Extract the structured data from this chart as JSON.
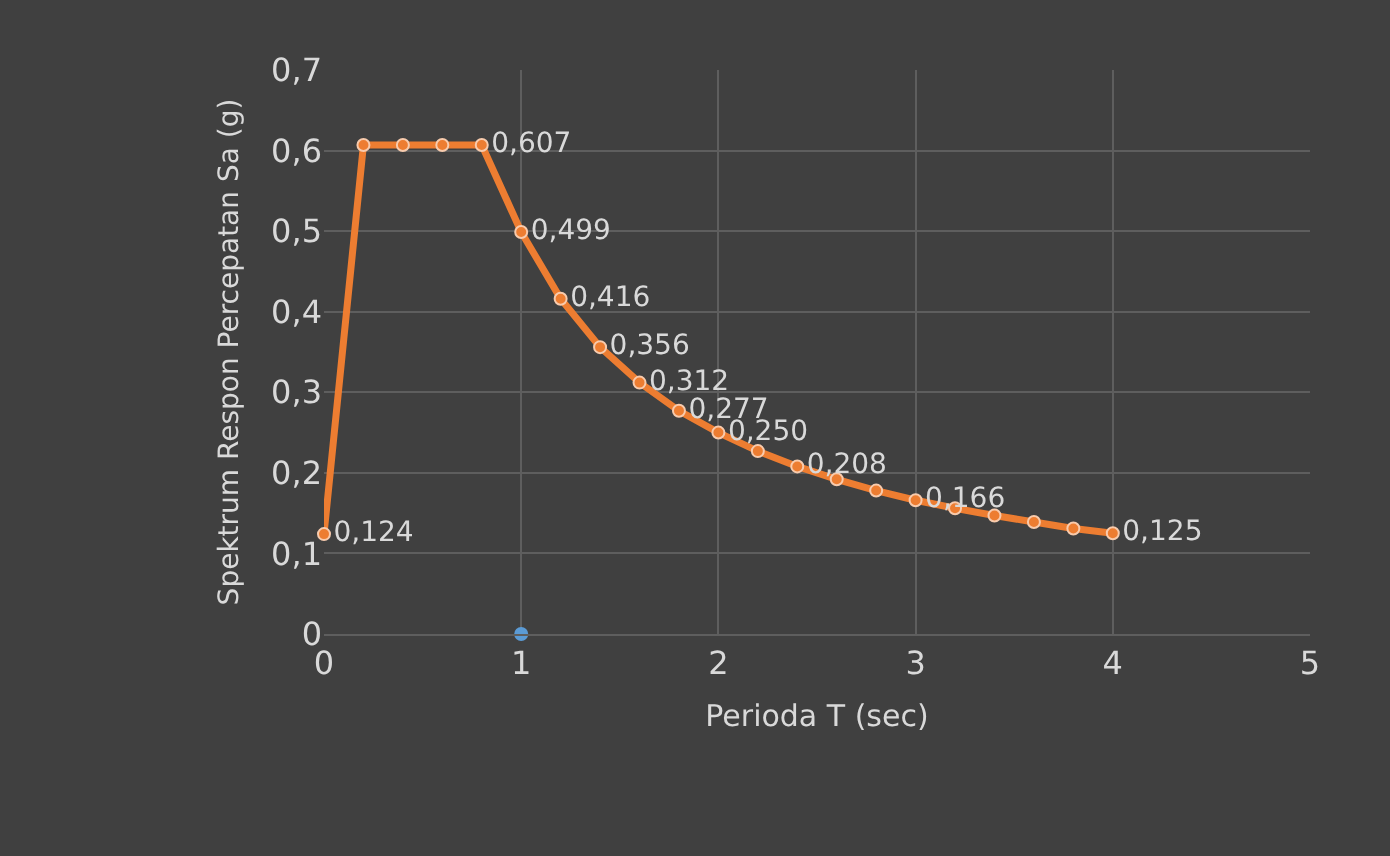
{
  "chart_data": {
    "type": "line",
    "xlabel": "Perioda T (sec)",
    "ylabel": "Spektrum Respon Percepatan Sa (g)",
    "xlim": [
      0,
      5
    ],
    "xticks": [
      0,
      1,
      2,
      3,
      4,
      5
    ],
    "ylim": [
      0,
      0.7
    ],
    "yticks": [
      {
        "value": 0,
        "label": "0"
      },
      {
        "value": 0.1,
        "label": "0,1"
      },
      {
        "value": 0.2,
        "label": "0,2"
      },
      {
        "value": 0.3,
        "label": "0,3"
      },
      {
        "value": 0.4,
        "label": "0,4"
      },
      {
        "value": 0.5,
        "label": "0,5"
      },
      {
        "value": 0.6,
        "label": "0,6"
      },
      {
        "value": 0.7,
        "label": "0,7"
      }
    ],
    "grid": true,
    "marker": "circle",
    "line_style": "solid",
    "series": [
      {
        "color": "#ed7d31",
        "x": [
          0,
          0.2,
          0.4,
          0.6,
          0.8,
          1.0,
          1.2,
          1.4,
          1.6,
          1.8,
          2.0,
          2.2,
          2.4,
          2.6,
          2.8,
          3.0,
          3.2,
          3.4,
          3.6,
          3.8,
          4.0
        ],
        "values": [
          0.124,
          0.607,
          0.607,
          0.607,
          0.607,
          0.499,
          0.416,
          0.356,
          0.312,
          0.277,
          0.25,
          0.227,
          0.208,
          0.192,
          0.178,
          0.166,
          0.156,
          0.147,
          0.139,
          0.131,
          0.125
        ],
        "value_labels": [
          "0,124",
          null,
          null,
          null,
          "0,607",
          "0,499",
          "0,416",
          "0,356",
          "0,312",
          "0,277",
          "0,250",
          null,
          "0,208",
          null,
          null,
          "0,166",
          null,
          null,
          null,
          null,
          "0,125"
        ]
      },
      {
        "type": "scatter",
        "color": "#5b9bd5",
        "x": [
          1
        ],
        "values": [
          0
        ]
      }
    ]
  }
}
